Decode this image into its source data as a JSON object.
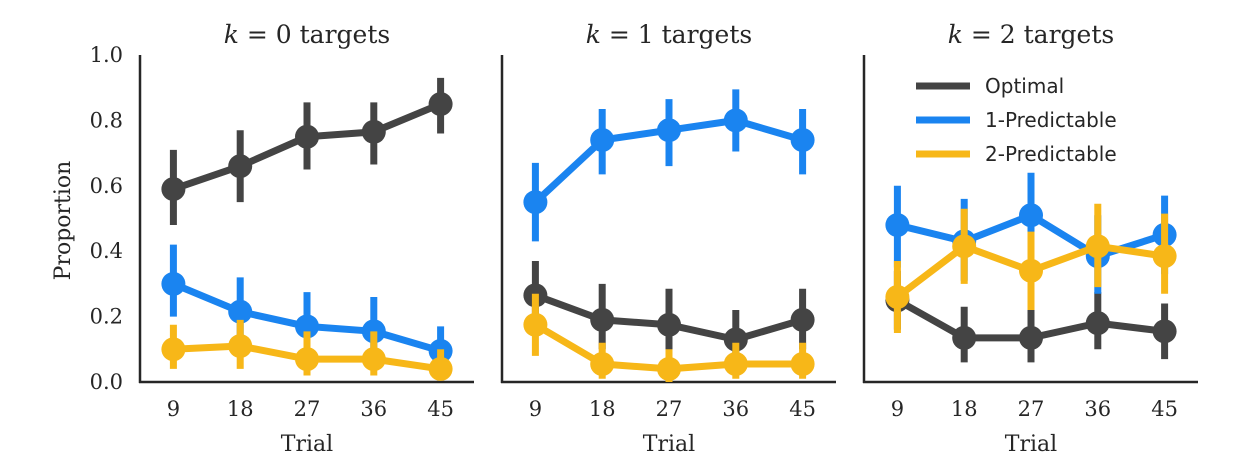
{
  "chart_data": [
    {
      "type": "line",
      "title_var": "k",
      "title_rest": " = 0 targets",
      "xlabel": "Trial",
      "ylabel": "Proportion",
      "categories": [
        "9",
        "18",
        "27",
        "36",
        "45"
      ],
      "ylim": [
        0,
        1
      ],
      "yticks": [
        "0.0",
        "0.2",
        "0.4",
        "0.6",
        "0.8",
        "1.0"
      ],
      "series": [
        {
          "color": "#444444",
          "values": [
            0.59,
            0.66,
            0.75,
            0.765,
            0.85
          ],
          "err_low": [
            0.48,
            0.55,
            0.65,
            0.665,
            0.76
          ],
          "err_high": [
            0.71,
            0.77,
            0.855,
            0.855,
            0.93
          ]
        },
        {
          "color": "#1a84f0",
          "values": [
            0.3,
            0.215,
            0.17,
            0.155,
            0.095
          ],
          "err_low": [
            0.2,
            0.13,
            0.1,
            0.085,
            0.04
          ],
          "err_high": [
            0.42,
            0.32,
            0.275,
            0.26,
            0.17
          ]
        },
        {
          "color": "#f7b718",
          "values": [
            0.1,
            0.11,
            0.07,
            0.07,
            0.04
          ],
          "err_low": [
            0.04,
            0.04,
            0.02,
            0.02,
            0.005
          ],
          "err_high": [
            0.175,
            0.19,
            0.155,
            0.155,
            0.1
          ]
        }
      ]
    },
    {
      "type": "line",
      "title_var": "k",
      "title_rest": " = 1 targets",
      "xlabel": "Trial",
      "categories": [
        "9",
        "18",
        "27",
        "36",
        "45"
      ],
      "ylim": [
        0,
        1
      ],
      "series": [
        {
          "color": "#1a84f0",
          "values": [
            0.55,
            0.74,
            0.77,
            0.8,
            0.74
          ],
          "err_low": [
            0.43,
            0.635,
            0.66,
            0.705,
            0.635
          ],
          "err_high": [
            0.67,
            0.835,
            0.865,
            0.895,
            0.835
          ]
        },
        {
          "color": "#444444",
          "values": [
            0.265,
            0.19,
            0.175,
            0.13,
            0.19
          ],
          "err_low": [
            0.16,
            0.1,
            0.08,
            0.05,
            0.1
          ],
          "err_high": [
            0.37,
            0.3,
            0.285,
            0.22,
            0.285
          ]
        },
        {
          "color": "#f7b718",
          "values": [
            0.175,
            0.055,
            0.04,
            0.055,
            0.055
          ],
          "err_low": [
            0.08,
            0.01,
            0.0,
            0.01,
            0.01
          ],
          "err_high": [
            0.27,
            0.12,
            0.1,
            0.12,
            0.12
          ]
        }
      ]
    },
    {
      "type": "line",
      "title_var": "k",
      "title_rest": " = 2 targets",
      "xlabel": "Trial",
      "categories": [
        "9",
        "18",
        "27",
        "36",
        "45"
      ],
      "ylim": [
        0,
        1
      ],
      "legend": [
        "Optimal",
        "1-Predictable",
        "2-Predictable"
      ],
      "legend_colors": [
        "#444444",
        "#1a84f0",
        "#f7b718"
      ],
      "legend_position": "top-right",
      "series": [
        {
          "color": "#444444",
          "values": [
            0.25,
            0.135,
            0.135,
            0.18,
            0.155
          ],
          "err_low": [
            0.16,
            0.06,
            0.06,
            0.1,
            0.07
          ],
          "err_high": [
            0.34,
            0.23,
            0.23,
            0.275,
            0.24
          ]
        },
        {
          "color": "#1a84f0",
          "values": [
            0.48,
            0.43,
            0.51,
            0.385,
            0.45
          ],
          "err_low": [
            0.35,
            0.31,
            0.39,
            0.27,
            0.33
          ],
          "err_high": [
            0.6,
            0.56,
            0.64,
            0.51,
            0.57
          ]
        },
        {
          "color": "#f7b718",
          "values": [
            0.26,
            0.415,
            0.34,
            0.415,
            0.385
          ],
          "err_low": [
            0.15,
            0.3,
            0.22,
            0.29,
            0.27
          ],
          "err_high": [
            0.37,
            0.53,
            0.46,
            0.545,
            0.515
          ]
        }
      ]
    }
  ]
}
